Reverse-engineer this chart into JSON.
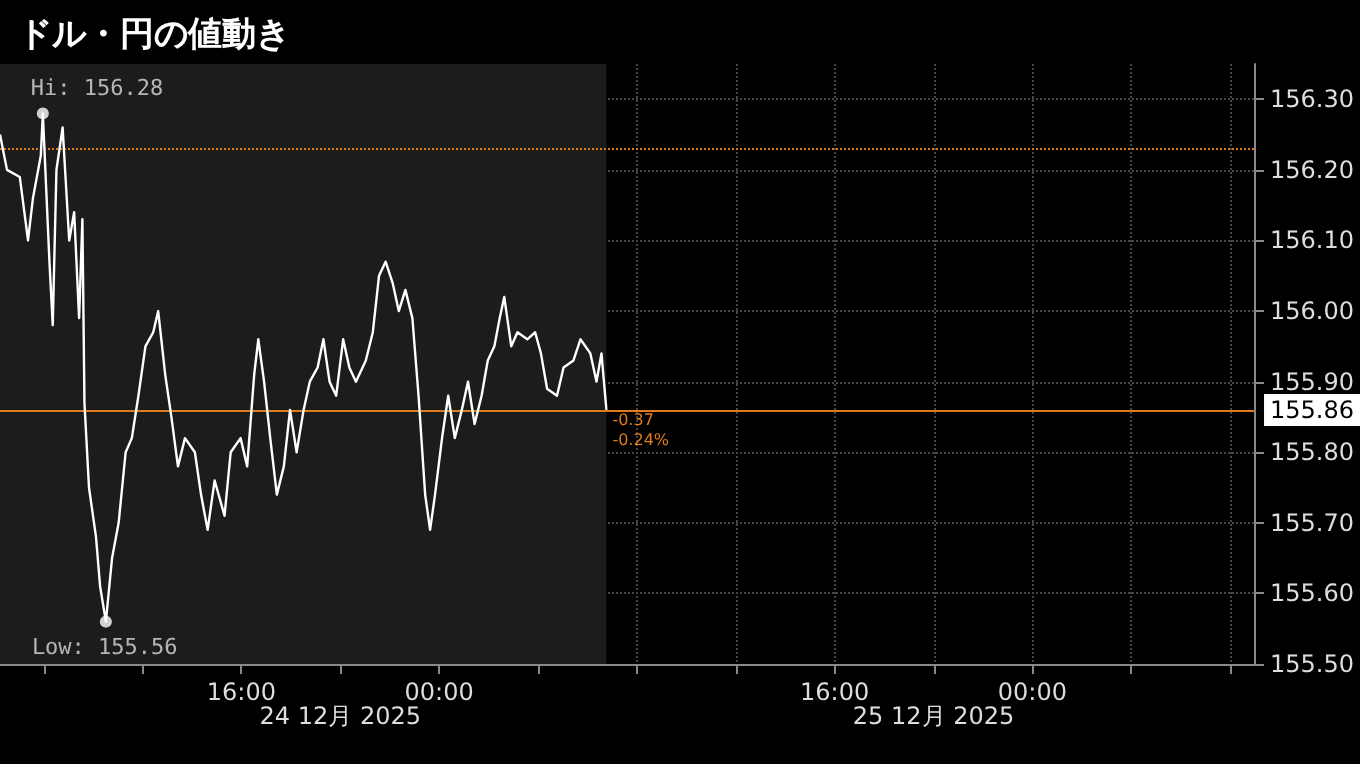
{
  "chart_data": {
    "type": "line",
    "title": "ドル・円の値動き",
    "x": [
      "2025-12-24T06:14",
      "2025-12-24T06:31",
      "2025-12-24T07:02",
      "2025-12-24T07:22",
      "2025-12-24T07:34",
      "2025-12-24T07:53",
      "2025-12-24T07:58",
      "2025-12-24T08:14",
      "2025-12-24T08:22",
      "2025-12-24T08:31",
      "2025-12-24T08:46",
      "2025-12-24T09:02",
      "2025-12-24T09:14",
      "2025-12-24T09:26",
      "2025-12-24T09:34",
      "2025-12-24T09:39",
      "2025-12-24T09:50",
      "2025-12-24T10:07",
      "2025-12-24T10:17",
      "2025-12-24T10:31",
      "2025-12-24T10:46",
      "2025-12-24T11:02",
      "2025-12-24T11:19",
      "2025-12-24T11:34",
      "2025-12-24T11:50",
      "2025-12-24T12:07",
      "2025-12-24T12:26",
      "2025-12-24T12:38",
      "2025-12-24T12:55",
      "2025-12-24T13:10",
      "2025-12-24T13:26",
      "2025-12-24T13:43",
      "2025-12-24T14:07",
      "2025-12-24T14:22",
      "2025-12-24T14:38",
      "2025-12-24T14:55",
      "2025-12-24T15:19",
      "2025-12-24T15:34",
      "2025-12-24T15:58",
      "2025-12-24T16:14",
      "2025-12-24T16:31",
      "2025-12-24T16:41",
      "2025-12-24T16:55",
      "2025-12-24T17:10",
      "2025-12-24T17:26",
      "2025-12-24T17:43",
      "2025-12-24T17:58",
      "2025-12-24T18:14",
      "2025-12-24T18:31",
      "2025-12-24T18:46",
      "2025-12-24T19:05",
      "2025-12-24T19:19",
      "2025-12-24T19:34",
      "2025-12-24T19:50",
      "2025-12-24T20:07",
      "2025-12-24T20:22",
      "2025-12-24T20:38",
      "2025-12-24T21:02",
      "2025-12-24T21:19",
      "2025-12-24T21:34",
      "2025-12-24T21:50",
      "2025-12-24T22:07",
      "2025-12-24T22:22",
      "2025-12-24T22:38",
      "2025-12-24T22:55",
      "2025-12-24T23:10",
      "2025-12-24T23:26",
      "2025-12-24T23:38",
      "2025-12-24T23:50",
      "2025-12-25T00:07",
      "2025-12-25T00:22",
      "2025-12-25T00:38",
      "2025-12-25T00:55",
      "2025-12-25T01:10",
      "2025-12-25T01:26",
      "2025-12-25T01:43",
      "2025-12-25T01:58",
      "2025-12-25T02:14",
      "2025-12-25T02:27",
      "2025-12-25T02:38",
      "2025-12-25T02:55",
      "2025-12-25T03:10",
      "2025-12-25T03:34",
      "2025-12-25T03:53",
      "2025-12-25T04:07",
      "2025-12-25T04:22",
      "2025-12-25T04:46",
      "2025-12-25T05:02",
      "2025-12-25T05:26",
      "2025-12-25T05:43",
      "2025-12-25T06:07",
      "2025-12-25T06:22",
      "2025-12-25T06:34",
      "2025-12-25T06:46"
    ],
    "series": [
      {
        "color": "#ffffff",
        "values": [
          156.25,
          156.2,
          156.19,
          156.1,
          156.16,
          156.22,
          156.28,
          156.07,
          155.98,
          156.2,
          156.26,
          156.1,
          156.14,
          155.99,
          156.13,
          155.87,
          155.75,
          155.68,
          155.61,
          155.56,
          155.65,
          155.7,
          155.8,
          155.82,
          155.88,
          155.95,
          155.97,
          156.0,
          155.91,
          155.85,
          155.78,
          155.82,
          155.8,
          155.74,
          155.69,
          155.76,
          155.71,
          155.8,
          155.82,
          155.78,
          155.91,
          155.96,
          155.9,
          155.82,
          155.74,
          155.78,
          155.86,
          155.8,
          155.86,
          155.9,
          155.92,
          155.96,
          155.9,
          155.88,
          155.96,
          155.92,
          155.9,
          155.93,
          155.97,
          156.05,
          156.07,
          156.04,
          156.0,
          156.03,
          155.99,
          155.88,
          155.74,
          155.69,
          155.74,
          155.82,
          155.88,
          155.82,
          155.86,
          155.9,
          155.84,
          155.88,
          155.93,
          155.95,
          155.99,
          156.02,
          155.95,
          155.97,
          155.96,
          155.97,
          155.94,
          155.89,
          155.88,
          155.92,
          155.93,
          155.96,
          155.94,
          155.9,
          155.94,
          155.86
        ]
      }
    ],
    "xlim": [
      "2025-12-24T06:14",
      "2025-12-26T08:58"
    ],
    "xticks": [
      {
        "value": "2025-12-24T08:00",
        "label": null
      },
      {
        "value": "2025-12-24T12:00",
        "label": null
      },
      {
        "value": "2025-12-24T16:00",
        "label": "16:00"
      },
      {
        "value": "2025-12-24T20:00",
        "label": null
      },
      {
        "value": "2025-12-25T00:00",
        "label": "00:00"
      },
      {
        "value": "2025-12-25T04:00",
        "label": null
      },
      {
        "value": "2025-12-25T08:00",
        "label": null
      },
      {
        "value": "2025-12-25T12:00",
        "label": null
      },
      {
        "value": "2025-12-25T16:00",
        "label": "16:00"
      },
      {
        "value": "2025-12-25T20:00",
        "label": null
      },
      {
        "value": "2025-12-26T00:00",
        "label": "00:00"
      },
      {
        "value": "2025-12-26T04:00",
        "label": null
      },
      {
        "value": "2025-12-26T08:00",
        "label": null
      }
    ],
    "ylim": [
      155.5,
      156.35
    ],
    "yticks": [
      {
        "value": 155.5,
        "label": "155.50"
      },
      {
        "value": 155.6,
        "label": "155.60"
      },
      {
        "value": 155.7,
        "label": "155.70"
      },
      {
        "value": 155.8,
        "label": "155.80"
      },
      {
        "value": 155.9,
        "label": "155.90"
      },
      {
        "value": 156.0,
        "label": "156.00"
      },
      {
        "value": 156.1,
        "label": "156.10"
      },
      {
        "value": 156.2,
        "label": "156.20"
      },
      {
        "value": 156.3,
        "label": "156.30"
      }
    ],
    "grid": true,
    "ref_lines": [
      {
        "axis": "y",
        "value": 156.23,
        "color": "#e07b1a",
        "line_style": "dotted"
      },
      {
        "axis": "y",
        "value": 155.86,
        "label": "155.86",
        "color": "#e07b1a",
        "line_style": "solid"
      }
    ],
    "bands": [
      {
        "axis": "x",
        "from": "2025-12-24T06:14",
        "to": "2025-12-25T06:46",
        "color": "#1c1c1c"
      }
    ],
    "annotations": [
      {
        "text": "Hi: 156.28",
        "x": "2025-12-24T07:58",
        "y": 156.28
      },
      {
        "text": "Low: 155.56",
        "x": "2025-12-24T10:31",
        "y": 155.56
      },
      "-0.37",
      "-0.24%",
      "24 12月 2025",
      "25 12月 2025"
    ]
  }
}
